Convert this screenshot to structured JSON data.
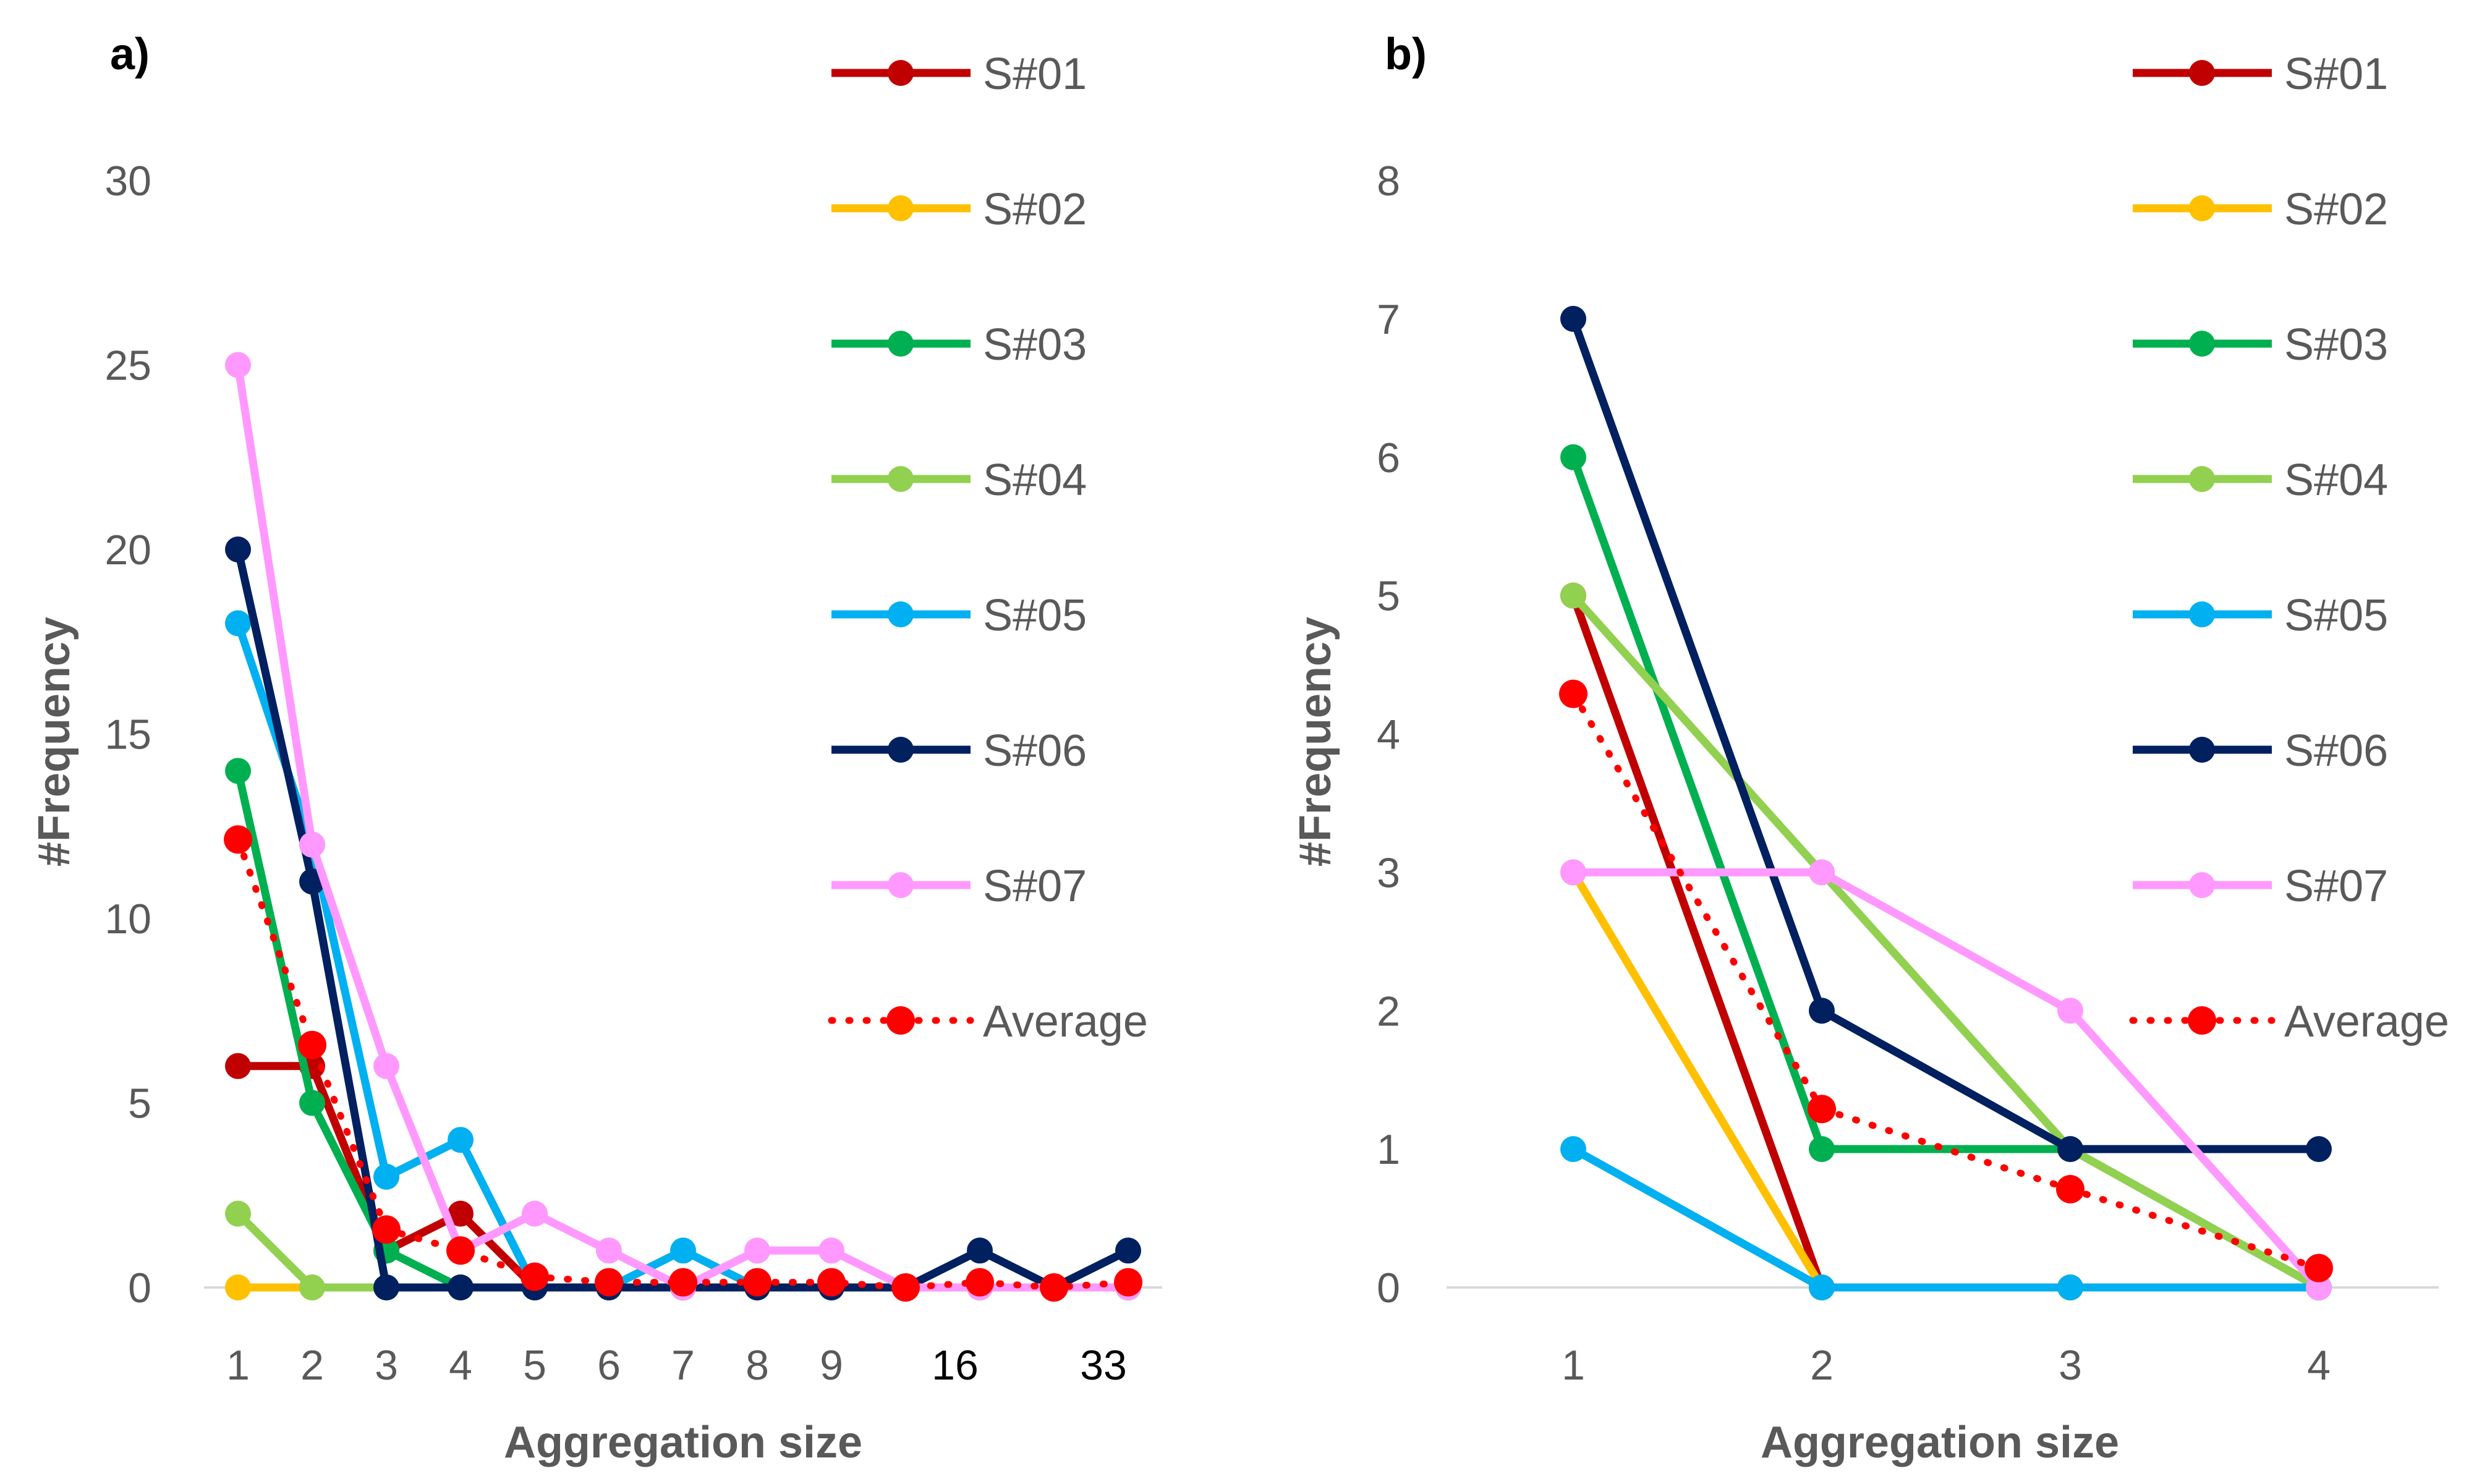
{
  "chart_data": [
    {
      "type": "line",
      "panel_label": "a)",
      "xlabel": "Aggregation size",
      "ylabel": "#Frequency",
      "categories": [
        "1",
        "2",
        "3",
        "4",
        "5",
        "6",
        "7",
        "8",
        "9",
        "",
        "16",
        "",
        "33"
      ],
      "dark_labels": [
        "16",
        "33"
      ],
      "ylim": [
        0,
        30
      ],
      "yticks": [
        0,
        5,
        10,
        15,
        20,
        25,
        30
      ],
      "grid": false,
      "legend_position": "right",
      "series": [
        {
          "name": "S#01",
          "color": "#C00000",
          "style": "solid",
          "values": [
            6,
            6,
            1,
            2,
            0,
            0,
            0,
            0,
            0,
            0,
            0,
            0,
            0
          ]
        },
        {
          "name": "S#02",
          "color": "#FFC000",
          "style": "solid",
          "values": [
            0,
            0,
            0,
            0,
            0,
            0,
            0,
            0,
            0,
            0,
            0,
            0,
            0
          ]
        },
        {
          "name": "S#03",
          "color": "#00B050",
          "style": "solid",
          "values": [
            14,
            5,
            1,
            0,
            0,
            0,
            0,
            0,
            0,
            0,
            0,
            0,
            0
          ]
        },
        {
          "name": "S#04",
          "color": "#92D050",
          "style": "solid",
          "values": [
            2,
            0,
            0,
            0,
            0,
            0,
            0,
            0,
            0,
            0,
            0,
            0,
            0
          ]
        },
        {
          "name": "S#05",
          "color": "#00B0F0",
          "style": "solid",
          "values": [
            18,
            12,
            3,
            4,
            0,
            0,
            1,
            0,
            0,
            0,
            0,
            0,
            0
          ]
        },
        {
          "name": "S#06",
          "color": "#002060",
          "style": "solid",
          "values": [
            20,
            11,
            0,
            0,
            0,
            0,
            0,
            0,
            0,
            0,
            1,
            0,
            1
          ]
        },
        {
          "name": "S#07",
          "color": "#FF99FF",
          "style": "solid",
          "values": [
            25,
            12,
            6,
            1,
            2,
            1,
            0,
            1,
            1,
            0,
            0,
            0,
            0
          ]
        },
        {
          "name": "Average",
          "color": "#FF0000",
          "style": "dotted",
          "values": [
            12.14,
            6.57,
            1.57,
            1,
            0.29,
            0.14,
            0.14,
            0.14,
            0.14,
            0,
            0.14,
            0,
            0.14
          ]
        }
      ]
    },
    {
      "type": "line",
      "panel_label": "b)",
      "xlabel": "Aggregation size",
      "ylabel": "#Frequency",
      "categories": [
        "1",
        "2",
        "3",
        "4"
      ],
      "dark_labels": [],
      "ylim": [
        0,
        8
      ],
      "yticks": [
        0,
        1,
        2,
        3,
        4,
        5,
        6,
        7,
        8
      ],
      "grid": false,
      "legend_position": "right",
      "series": [
        {
          "name": "S#01",
          "color": "#C00000",
          "style": "solid",
          "values": [
            5,
            0,
            0,
            0
          ]
        },
        {
          "name": "S#02",
          "color": "#FFC000",
          "style": "solid",
          "values": [
            3,
            0,
            0,
            0
          ]
        },
        {
          "name": "S#03",
          "color": "#00B050",
          "style": "solid",
          "values": [
            6,
            1,
            1,
            0
          ]
        },
        {
          "name": "S#04",
          "color": "#92D050",
          "style": "solid",
          "values": [
            5,
            3,
            1,
            0
          ]
        },
        {
          "name": "S#05",
          "color": "#00B0F0",
          "style": "solid",
          "values": [
            1,
            0,
            0,
            0
          ]
        },
        {
          "name": "S#06",
          "color": "#002060",
          "style": "solid",
          "values": [
            7,
            2,
            1,
            1
          ]
        },
        {
          "name": "S#07",
          "color": "#FF99FF",
          "style": "solid",
          "values": [
            3,
            3,
            2,
            0
          ]
        },
        {
          "name": "Average",
          "color": "#FF0000",
          "style": "dotted",
          "values": [
            4.29,
            1.29,
            0.71,
            0.14
          ]
        }
      ]
    }
  ]
}
